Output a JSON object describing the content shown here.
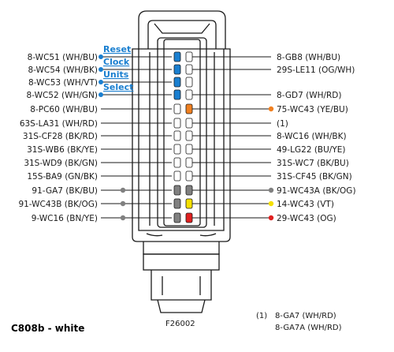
{
  "title": "C808b - white",
  "figure_id": "F26002",
  "function_labels": [
    "Reset",
    "Clock",
    "Units",
    "Select"
  ],
  "left_pins": [
    {
      "label": "8-WC51 (WH/BU)",
      "dot": null
    },
    {
      "label": "8-WC54 (WH/BK)",
      "dot": null
    },
    {
      "label": "8-WC53 (WH/VT)",
      "dot": null
    },
    {
      "label": "8-WC52 (WH/GN)",
      "dot": null
    },
    {
      "label": "8-PC60 (WH/BU)",
      "dot": null
    },
    {
      "label": "63S-LA31 (WH/RD)",
      "dot": null
    },
    {
      "label": "31S-CF28 (BK/RD)",
      "dot": null
    },
    {
      "label": "31S-WB6 (BK/YE)",
      "dot": null
    },
    {
      "label": "31S-WD9 (BK/GN)",
      "dot": null
    },
    {
      "label": "15S-BA9 (GN/BK)",
      "dot": null
    },
    {
      "label": "91-GA7 (BK/BU)",
      "dot": "#808080"
    },
    {
      "label": "91-WC43B (BK/OG)",
      "dot": "#808080"
    },
    {
      "label": "9-WC16 (BN/YE)",
      "dot": "#808080"
    }
  ],
  "right_pins": [
    {
      "label": "8-GB8 (WH/BU)",
      "dot": null
    },
    {
      "label": "29S-LE11 (OG/WH)",
      "dot": null
    },
    {
      "label": "8-GD7 (WH/RD)",
      "dot": null
    },
    {
      "label": "75-WC43 (YE/BU)",
      "dot": "#f08020"
    },
    {
      "label": "(1)",
      "dot": null
    },
    {
      "label": "8-WC16 (WH/BK)",
      "dot": null
    },
    {
      "label": "49-LG22 (BU/YE)",
      "dot": null
    },
    {
      "label": "31S-WC7 (BK/BU)",
      "dot": null
    },
    {
      "label": "31S-CF45 (BK/GN)",
      "dot": null
    },
    {
      "label": "91-WC43A (BK/OG)",
      "dot": "#808080"
    },
    {
      "label": "14-WC43 (VT)",
      "dot": "#f5e000"
    },
    {
      "label": "29-WC43 (OG)",
      "dot": "#e02020"
    }
  ],
  "footnote": {
    "marker": "(1)",
    "lines": [
      "8-GA7 (WH/RD)",
      "8-GA7A (WH/RD)"
    ]
  },
  "colors": {
    "wire": "#1a1a1a",
    "function_accent": "#1a7fd0",
    "terminal_blue": "#1a7fd0",
    "terminal_orange": "#f08020",
    "terminal_gray": "#808080",
    "terminal_yellow": "#f5e000",
    "terminal_red": "#e02020"
  }
}
